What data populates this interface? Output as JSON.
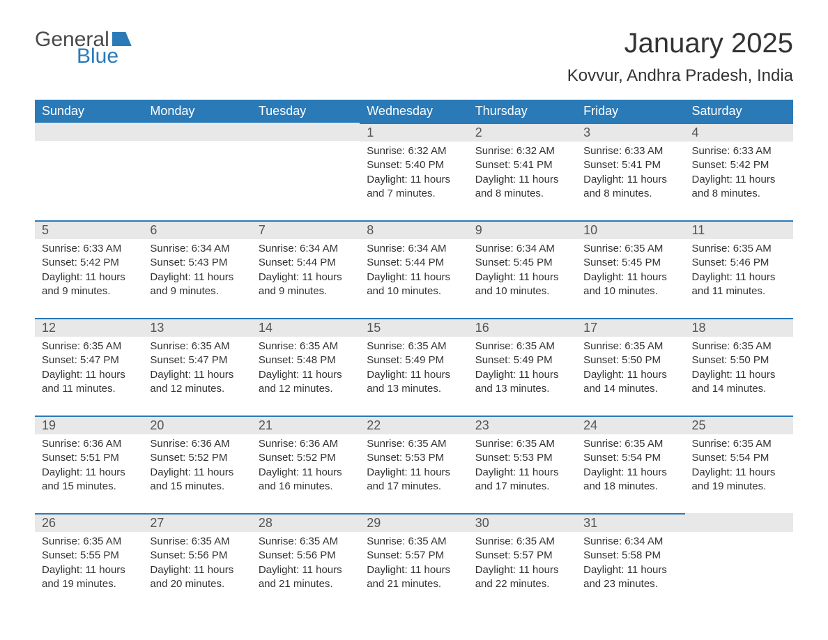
{
  "logo": {
    "general": "General",
    "blue": "Blue"
  },
  "title": "January 2025",
  "location": "Kovvur, Andhra Pradesh, India",
  "colors": {
    "header_bg": "#2a7ab8",
    "header_text": "#ffffff",
    "daynum_bg": "#e8e8e8",
    "daynum_border": "#2a7ab8",
    "text": "#333333",
    "background": "#ffffff"
  },
  "typography": {
    "title_fontsize": 40,
    "location_fontsize": 24,
    "header_fontsize": 18,
    "daynum_fontsize": 18,
    "body_fontsize": 15
  },
  "weekdays": [
    "Sunday",
    "Monday",
    "Tuesday",
    "Wednesday",
    "Thursday",
    "Friday",
    "Saturday"
  ],
  "sunrise_label": "Sunrise",
  "sunset_label": "Sunset",
  "daylight_label": "Daylight",
  "weeks": [
    [
      null,
      null,
      null,
      {
        "day": "1",
        "sunrise": "6:32 AM",
        "sunset": "5:40 PM",
        "daylight": "11 hours and 7 minutes."
      },
      {
        "day": "2",
        "sunrise": "6:32 AM",
        "sunset": "5:41 PM",
        "daylight": "11 hours and 8 minutes."
      },
      {
        "day": "3",
        "sunrise": "6:33 AM",
        "sunset": "5:41 PM",
        "daylight": "11 hours and 8 minutes."
      },
      {
        "day": "4",
        "sunrise": "6:33 AM",
        "sunset": "5:42 PM",
        "daylight": "11 hours and 8 minutes."
      }
    ],
    [
      {
        "day": "5",
        "sunrise": "6:33 AM",
        "sunset": "5:42 PM",
        "daylight": "11 hours and 9 minutes."
      },
      {
        "day": "6",
        "sunrise": "6:34 AM",
        "sunset": "5:43 PM",
        "daylight": "11 hours and 9 minutes."
      },
      {
        "day": "7",
        "sunrise": "6:34 AM",
        "sunset": "5:44 PM",
        "daylight": "11 hours and 9 minutes."
      },
      {
        "day": "8",
        "sunrise": "6:34 AM",
        "sunset": "5:44 PM",
        "daylight": "11 hours and 10 minutes."
      },
      {
        "day": "9",
        "sunrise": "6:34 AM",
        "sunset": "5:45 PM",
        "daylight": "11 hours and 10 minutes."
      },
      {
        "day": "10",
        "sunrise": "6:35 AM",
        "sunset": "5:45 PM",
        "daylight": "11 hours and 10 minutes."
      },
      {
        "day": "11",
        "sunrise": "6:35 AM",
        "sunset": "5:46 PM",
        "daylight": "11 hours and 11 minutes."
      }
    ],
    [
      {
        "day": "12",
        "sunrise": "6:35 AM",
        "sunset": "5:47 PM",
        "daylight": "11 hours and 11 minutes."
      },
      {
        "day": "13",
        "sunrise": "6:35 AM",
        "sunset": "5:47 PM",
        "daylight": "11 hours and 12 minutes."
      },
      {
        "day": "14",
        "sunrise": "6:35 AM",
        "sunset": "5:48 PM",
        "daylight": "11 hours and 12 minutes."
      },
      {
        "day": "15",
        "sunrise": "6:35 AM",
        "sunset": "5:49 PM",
        "daylight": "11 hours and 13 minutes."
      },
      {
        "day": "16",
        "sunrise": "6:35 AM",
        "sunset": "5:49 PM",
        "daylight": "11 hours and 13 minutes."
      },
      {
        "day": "17",
        "sunrise": "6:35 AM",
        "sunset": "5:50 PM",
        "daylight": "11 hours and 14 minutes."
      },
      {
        "day": "18",
        "sunrise": "6:35 AM",
        "sunset": "5:50 PM",
        "daylight": "11 hours and 14 minutes."
      }
    ],
    [
      {
        "day": "19",
        "sunrise": "6:36 AM",
        "sunset": "5:51 PM",
        "daylight": "11 hours and 15 minutes."
      },
      {
        "day": "20",
        "sunrise": "6:36 AM",
        "sunset": "5:52 PM",
        "daylight": "11 hours and 15 minutes."
      },
      {
        "day": "21",
        "sunrise": "6:36 AM",
        "sunset": "5:52 PM",
        "daylight": "11 hours and 16 minutes."
      },
      {
        "day": "22",
        "sunrise": "6:35 AM",
        "sunset": "5:53 PM",
        "daylight": "11 hours and 17 minutes."
      },
      {
        "day": "23",
        "sunrise": "6:35 AM",
        "sunset": "5:53 PM",
        "daylight": "11 hours and 17 minutes."
      },
      {
        "day": "24",
        "sunrise": "6:35 AM",
        "sunset": "5:54 PM",
        "daylight": "11 hours and 18 minutes."
      },
      {
        "day": "25",
        "sunrise": "6:35 AM",
        "sunset": "5:54 PM",
        "daylight": "11 hours and 19 minutes."
      }
    ],
    [
      {
        "day": "26",
        "sunrise": "6:35 AM",
        "sunset": "5:55 PM",
        "daylight": "11 hours and 19 minutes."
      },
      {
        "day": "27",
        "sunrise": "6:35 AM",
        "sunset": "5:56 PM",
        "daylight": "11 hours and 20 minutes."
      },
      {
        "day": "28",
        "sunrise": "6:35 AM",
        "sunset": "5:56 PM",
        "daylight": "11 hours and 21 minutes."
      },
      {
        "day": "29",
        "sunrise": "6:35 AM",
        "sunset": "5:57 PM",
        "daylight": "11 hours and 21 minutes."
      },
      {
        "day": "30",
        "sunrise": "6:35 AM",
        "sunset": "5:57 PM",
        "daylight": "11 hours and 22 minutes."
      },
      {
        "day": "31",
        "sunrise": "6:34 AM",
        "sunset": "5:58 PM",
        "daylight": "11 hours and 23 minutes."
      },
      null
    ]
  ]
}
